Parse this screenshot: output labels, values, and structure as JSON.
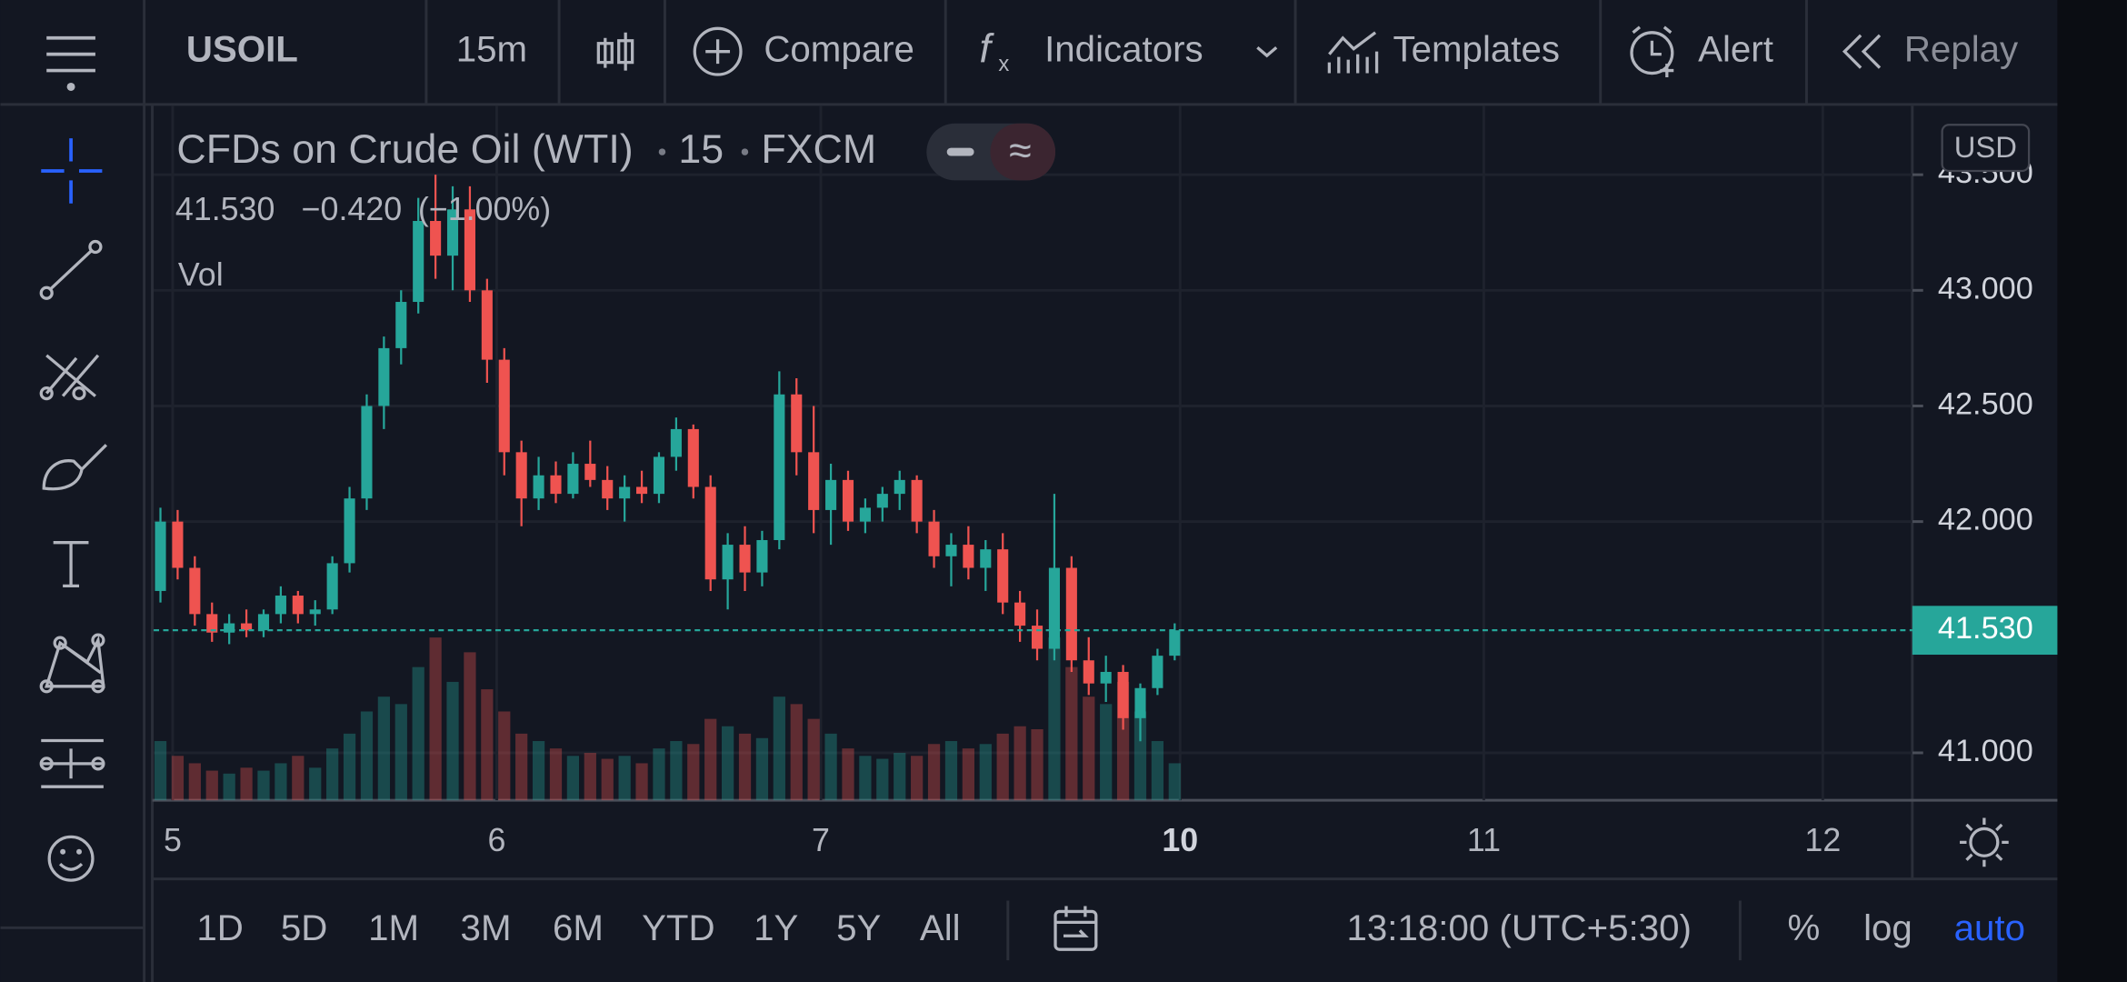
{
  "toolbar": {
    "symbol": "USOIL",
    "interval": "15m",
    "compare": "Compare",
    "indicators": "Indicators",
    "templates": "Templates",
    "alert": "Alert",
    "replay": "Replay"
  },
  "chart": {
    "title": "CFDs on Crude Oil (WTI)",
    "interval": "15",
    "exchange": "FXCM",
    "last": {
      "value": 41.53,
      "label": "41.530"
    },
    "change": "−0.420",
    "change_pct": "(−1.00%)",
    "vol_label": "Vol",
    "currency": "USD",
    "ylim": [
      40.795,
      43.798
    ],
    "yticks": [
      {
        "value": 41,
        "label": "41.000"
      },
      {
        "value": 42,
        "label": "42.000"
      },
      {
        "value": 42.5,
        "label": "42.500"
      },
      {
        "value": 43,
        "label": "43.000"
      },
      {
        "value": 43.5,
        "label": "43.500"
      }
    ],
    "xticks": [
      "5",
      "6",
      "7",
      "10",
      "11",
      "12"
    ],
    "up_color": "#26a69a",
    "down_color": "#ef5350",
    "ohlc": [
      [
        41.7,
        42.06,
        41.65,
        42.0
      ],
      [
        42.0,
        42.05,
        41.75,
        41.8
      ],
      [
        41.8,
        41.85,
        41.55,
        41.6
      ],
      [
        41.6,
        41.65,
        41.48,
        41.52
      ],
      [
        41.52,
        41.6,
        41.47,
        41.56
      ],
      [
        41.56,
        41.62,
        41.5,
        41.53
      ],
      [
        41.53,
        41.62,
        41.5,
        41.6
      ],
      [
        41.6,
        41.72,
        41.56,
        41.68
      ],
      [
        41.68,
        41.7,
        41.56,
        41.6
      ],
      [
        41.6,
        41.66,
        41.55,
        41.62
      ],
      [
        41.62,
        41.85,
        41.6,
        41.82
      ],
      [
        41.82,
        42.15,
        41.78,
        42.1
      ],
      [
        42.1,
        42.55,
        42.05,
        42.5
      ],
      [
        42.5,
        42.8,
        42.4,
        42.75
      ],
      [
        42.75,
        43.0,
        42.68,
        42.95
      ],
      [
        42.95,
        43.4,
        42.9,
        43.3
      ],
      [
        43.3,
        43.5,
        43.05,
        43.15
      ],
      [
        43.15,
        43.45,
        43.0,
        43.35
      ],
      [
        43.35,
        43.45,
        42.95,
        43.0
      ],
      [
        43.0,
        43.05,
        42.6,
        42.7
      ],
      [
        42.7,
        42.75,
        42.2,
        42.3
      ],
      [
        42.3,
        42.35,
        41.98,
        42.1
      ],
      [
        42.1,
        42.28,
        42.05,
        42.2
      ],
      [
        42.2,
        42.26,
        42.08,
        42.12
      ],
      [
        42.12,
        42.3,
        42.1,
        42.25
      ],
      [
        42.25,
        42.35,
        42.15,
        42.18
      ],
      [
        42.18,
        42.24,
        42.05,
        42.1
      ],
      [
        42.1,
        42.2,
        42.0,
        42.15
      ],
      [
        42.15,
        42.22,
        42.08,
        42.12
      ],
      [
        42.12,
        42.3,
        42.08,
        42.28
      ],
      [
        42.28,
        42.45,
        42.22,
        42.4
      ],
      [
        42.4,
        42.42,
        42.1,
        42.15
      ],
      [
        42.15,
        42.2,
        41.7,
        41.75
      ],
      [
        41.75,
        41.95,
        41.62,
        41.9
      ],
      [
        41.9,
        41.98,
        41.7,
        41.78
      ],
      [
        41.78,
        41.96,
        41.72,
        41.92
      ],
      [
        41.92,
        42.65,
        41.88,
        42.55
      ],
      [
        42.55,
        42.62,
        42.2,
        42.3
      ],
      [
        42.3,
        42.5,
        41.95,
        42.05
      ],
      [
        42.05,
        42.25,
        41.9,
        42.18
      ],
      [
        42.18,
        42.22,
        41.96,
        42.0
      ],
      [
        42.0,
        42.1,
        41.95,
        42.06
      ],
      [
        42.06,
        42.15,
        42.0,
        42.12
      ],
      [
        42.12,
        42.22,
        42.05,
        42.18
      ],
      [
        42.18,
        42.2,
        41.95,
        42.0
      ],
      [
        42.0,
        42.05,
        41.8,
        41.85
      ],
      [
        41.85,
        41.95,
        41.72,
        41.9
      ],
      [
        41.9,
        41.98,
        41.75,
        41.8
      ],
      [
        41.8,
        41.92,
        41.7,
        41.88
      ],
      [
        41.88,
        41.95,
        41.6,
        41.65
      ],
      [
        41.65,
        41.7,
        41.48,
        41.55
      ],
      [
        41.55,
        41.62,
        41.4,
        41.45
      ],
      [
        41.45,
        42.12,
        41.4,
        41.8
      ],
      [
        41.8,
        41.85,
        41.35,
        41.4
      ],
      [
        41.4,
        41.5,
        41.25,
        41.3
      ],
      [
        41.3,
        41.42,
        41.22,
        41.35
      ],
      [
        41.35,
        41.38,
        41.1,
        41.15
      ],
      [
        41.15,
        41.3,
        41.05,
        41.28
      ],
      [
        41.28,
        41.45,
        41.25,
        41.42
      ],
      [
        41.42,
        41.56,
        41.4,
        41.53
      ]
    ],
    "volumes": [
      40,
      30,
      25,
      20,
      18,
      22,
      20,
      25,
      30,
      22,
      35,
      45,
      60,
      70,
      65,
      90,
      110,
      80,
      100,
      75,
      60,
      45,
      40,
      35,
      30,
      32,
      28,
      30,
      25,
      35,
      40,
      38,
      55,
      50,
      45,
      42,
      70,
      65,
      55,
      45,
      35,
      30,
      28,
      32,
      30,
      38,
      40,
      35,
      38,
      45,
      50,
      48,
      110,
      90,
      70,
      65,
      80,
      60,
      40,
      25
    ]
  },
  "bottom": {
    "ranges": [
      "1D",
      "5D",
      "1M",
      "3M",
      "6M",
      "YTD",
      "1Y",
      "5Y",
      "All"
    ],
    "time": "13:18:00 (UTC+5:30)",
    "percent": "%",
    "log": "log",
    "auto": "auto"
  }
}
